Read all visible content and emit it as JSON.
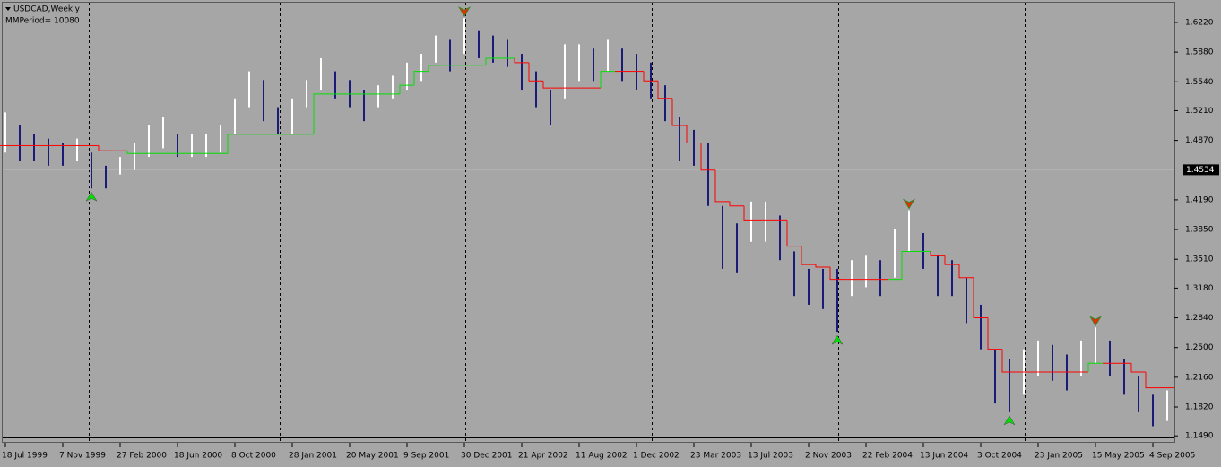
{
  "chart_data": {
    "type": "range_bar",
    "title": "USDCAD,Weekly",
    "subtitle": "MMPeriod= 10080",
    "categories": [
      "18 Jul 1999",
      null,
      null,
      null,
      "7 Nov 1999",
      null,
      null,
      null,
      "27 Feb 2000",
      null,
      null,
      null,
      "18 Jun 2000",
      null,
      null,
      null,
      "8 Oct 2000",
      null,
      null,
      null,
      "28 Jan 2001",
      null,
      null,
      null,
      "20 May 2001",
      null,
      null,
      null,
      "9 Sep 2001",
      null,
      null,
      null,
      "30 Dec 2001",
      null,
      null,
      null,
      "21 Apr 2002",
      null,
      null,
      null,
      "11 Aug 2002",
      null,
      null,
      null,
      "1 Dec 2002",
      null,
      null,
      null,
      "23 Mar 2003",
      null,
      null,
      null,
      "13 Jul 2003",
      null,
      null,
      null,
      "2 Nov 2003",
      null,
      null,
      null,
      "22 Feb 2004",
      null,
      null,
      null,
      "13 Jun 2004",
      null,
      null,
      null,
      "3 Oct 2004",
      null,
      null,
      null,
      "23 Jan 2005",
      null,
      null,
      null,
      "15 May 2005",
      null,
      null,
      null,
      "4 Sep 2005",
      null
    ],
    "high": [
      1.519,
      1.504,
      1.494,
      1.489,
      1.484,
      1.489,
      1.473,
      1.458,
      1.468,
      1.484,
      1.504,
      1.514,
      1.494,
      1.494,
      1.494,
      1.504,
      1.535,
      1.566,
      1.556,
      1.525,
      1.535,
      1.556,
      1.581,
      1.566,
      1.556,
      1.545,
      1.55,
      1.561,
      1.576,
      1.586,
      1.607,
      1.602,
      1.627,
      1.612,
      1.607,
      1.602,
      1.586,
      1.566,
      1.545,
      1.597,
      1.597,
      1.592,
      1.602,
      1.592,
      1.586,
      1.576,
      1.55,
      1.514,
      1.499,
      1.484,
      1.412,
      1.392,
      1.417,
      1.417,
      1.401,
      1.36,
      1.34,
      1.34,
      1.34,
      1.35,
      1.355,
      1.35,
      1.386,
      1.407,
      1.381,
      1.355,
      1.35,
      1.33,
      1.299,
      1.248,
      1.237,
      1.248,
      1.258,
      1.253,
      1.242,
      1.258,
      1.273,
      1.258,
      1.237,
      1.217,
      1.196,
      1.201
    ],
    "low": [
      1.473,
      1.463,
      1.463,
      1.458,
      1.458,
      1.463,
      1.432,
      1.432,
      1.448,
      1.453,
      1.468,
      1.478,
      1.468,
      1.468,
      1.468,
      1.473,
      1.494,
      1.525,
      1.509,
      1.494,
      1.494,
      1.525,
      1.545,
      1.535,
      1.525,
      1.509,
      1.525,
      1.535,
      1.545,
      1.555,
      1.576,
      1.566,
      1.586,
      1.581,
      1.576,
      1.571,
      1.545,
      1.525,
      1.504,
      1.535,
      1.555,
      1.555,
      1.566,
      1.555,
      1.545,
      1.535,
      1.509,
      1.463,
      1.458,
      1.412,
      1.34,
      1.335,
      1.371,
      1.371,
      1.35,
      1.309,
      1.299,
      1.294,
      1.268,
      1.309,
      1.319,
      1.309,
      1.33,
      1.36,
      1.34,
      1.309,
      1.309,
      1.278,
      1.248,
      1.186,
      1.176,
      1.196,
      1.217,
      1.212,
      1.201,
      1.217,
      1.232,
      1.217,
      1.196,
      1.176,
      1.16,
      1.166
    ],
    "up_color": "#ffffff",
    "down_color": "#1a1a78",
    "stop_down": {
      "color": "#ff0000",
      "values": [
        1.481,
        1.481,
        1.481,
        1.481,
        1.481,
        1.481,
        1.481,
        1.475,
        1.475,
        null,
        null,
        null,
        null,
        null,
        null,
        null,
        null,
        null,
        null,
        null,
        null,
        null,
        null,
        null,
        null,
        null,
        null,
        null,
        null,
        null,
        null,
        null,
        null,
        null,
        null,
        null,
        1.576,
        1.555,
        1.547,
        1.547,
        1.547,
        1.547,
        null,
        1.566,
        1.566,
        1.555,
        1.535,
        1.504,
        1.484,
        1.453,
        1.417,
        1.412,
        1.396,
        1.396,
        1.396,
        1.366,
        1.345,
        1.342,
        1.328,
        1.328,
        1.328,
        1.328,
        null,
        null,
        null,
        1.355,
        1.345,
        1.33,
        1.284,
        1.248,
        1.222,
        1.222,
        1.222,
        1.222,
        1.222,
        1.222,
        null,
        1.232,
        1.232,
        1.222,
        1.204,
        1.204
      ]
    },
    "stop_up": {
      "color": "#00e000",
      "values": [
        null,
        null,
        null,
        null,
        null,
        null,
        null,
        null,
        null,
        1.472,
        1.472,
        1.472,
        1.472,
        1.472,
        1.472,
        1.472,
        1.494,
        1.494,
        1.494,
        1.494,
        1.494,
        1.494,
        1.54,
        1.54,
        1.54,
        1.54,
        1.54,
        1.54,
        1.55,
        1.566,
        1.573,
        1.573,
        1.573,
        1.573,
        1.581,
        1.581,
        null,
        null,
        null,
        null,
        null,
        null,
        1.566,
        null,
        null,
        null,
        null,
        null,
        null,
        null,
        null,
        null,
        null,
        null,
        null,
        null,
        null,
        null,
        null,
        null,
        null,
        null,
        1.328,
        1.36,
        1.36,
        null,
        null,
        null,
        null,
        null,
        null,
        null,
        null,
        null,
        null,
        null,
        1.232,
        null,
        null,
        null,
        null,
        null
      ]
    },
    "buy_arrows": {
      "color": "#00e000",
      "values": [
        null,
        null,
        null,
        null,
        null,
        null,
        1.432,
        null,
        null,
        null,
        null,
        null,
        null,
        null,
        null,
        null,
        null,
        null,
        null,
        null,
        null,
        null,
        null,
        null,
        null,
        null,
        null,
        null,
        null,
        null,
        null,
        null,
        null,
        null,
        null,
        null,
        null,
        null,
        null,
        null,
        null,
        null,
        null,
        null,
        null,
        null,
        null,
        null,
        null,
        null,
        null,
        null,
        null,
        null,
        null,
        null,
        null,
        null,
        1.268,
        null,
        null,
        null,
        null,
        null,
        null,
        null,
        null,
        null,
        null,
        null,
        1.176,
        null,
        null,
        null,
        null,
        null,
        null,
        null,
        null,
        null,
        null,
        null
      ]
    },
    "sell_arrows": {
      "color": "#e03000",
      "values": [
        null,
        null,
        null,
        null,
        null,
        null,
        null,
        null,
        null,
        null,
        null,
        null,
        null,
        null,
        null,
        null,
        null,
        null,
        null,
        null,
        null,
        null,
        null,
        null,
        null,
        null,
        null,
        null,
        null,
        null,
        null,
        null,
        1.627,
        null,
        null,
        null,
        null,
        null,
        null,
        null,
        null,
        null,
        null,
        null,
        null,
        null,
        null,
        null,
        null,
        null,
        null,
        null,
        null,
        null,
        null,
        null,
        null,
        null,
        null,
        null,
        null,
        null,
        null,
        1.407,
        null,
        null,
        null,
        null,
        null,
        null,
        null,
        null,
        null,
        null,
        null,
        null,
        1.273,
        null,
        null,
        null,
        null,
        null
      ]
    },
    "current_price": {
      "value": 1.4534,
      "label": "1.4534"
    },
    "ylim": [
      1.141,
      1.6476
    ],
    "yticks": [
      {
        "value": 1.622,
        "label": "1.6220"
      },
      {
        "value": 1.588,
        "label": "1.5880"
      },
      {
        "value": 1.554,
        "label": "1.5540"
      },
      {
        "value": 1.521,
        "label": "1.5210"
      },
      {
        "value": 1.487,
        "label": "1.4870"
      },
      {
        "value": 1.419,
        "label": "1.4190"
      },
      {
        "value": 1.385,
        "label": "1.3850"
      },
      {
        "value": 1.351,
        "label": "1.3510"
      },
      {
        "value": 1.318,
        "label": "1.3180"
      },
      {
        "value": 1.284,
        "label": "1.2840"
      },
      {
        "value": 1.25,
        "label": "1.2500"
      },
      {
        "value": 1.216,
        "label": "1.2160"
      },
      {
        "value": 1.182,
        "label": "1.1820"
      },
      {
        "value": 1.149,
        "label": "1.1490"
      }
    ],
    "grid": false
  }
}
